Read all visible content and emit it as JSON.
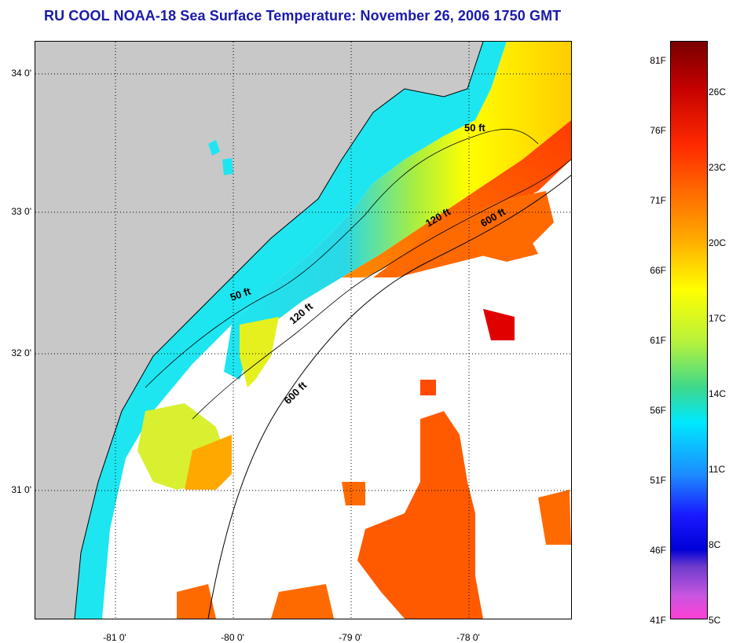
{
  "title": "RU COOL  NOAA-18  Sea Surface Temperature:  November 26, 2006 1750 GMT",
  "map": {
    "lat_labels": [
      "34 0'",
      "33 0'",
      "32 0'",
      "31 0'"
    ],
    "lon_labels": [
      "-81 0'",
      "-80 0'",
      "-79 0'",
      "-78 0'"
    ],
    "depth_labels": [
      "50 ft",
      "120 ft",
      "600 ft",
      "50 ft",
      "120 ft",
      "600 ft"
    ]
  },
  "colorbar": {
    "fahrenheit": [
      "81F",
      "76F",
      "71F",
      "66F",
      "61F",
      "56F",
      "51F",
      "46F",
      "41F"
    ],
    "celsius": [
      "26C",
      "23C",
      "20C",
      "17C",
      "14C",
      "11C",
      "8C",
      "5C"
    ]
  },
  "colors": {
    "land": "#c8c8c8",
    "cold": "#1ee6f0",
    "mid": "#ffff00",
    "warm": "#ff5a00",
    "hot": "#e00000"
  }
}
